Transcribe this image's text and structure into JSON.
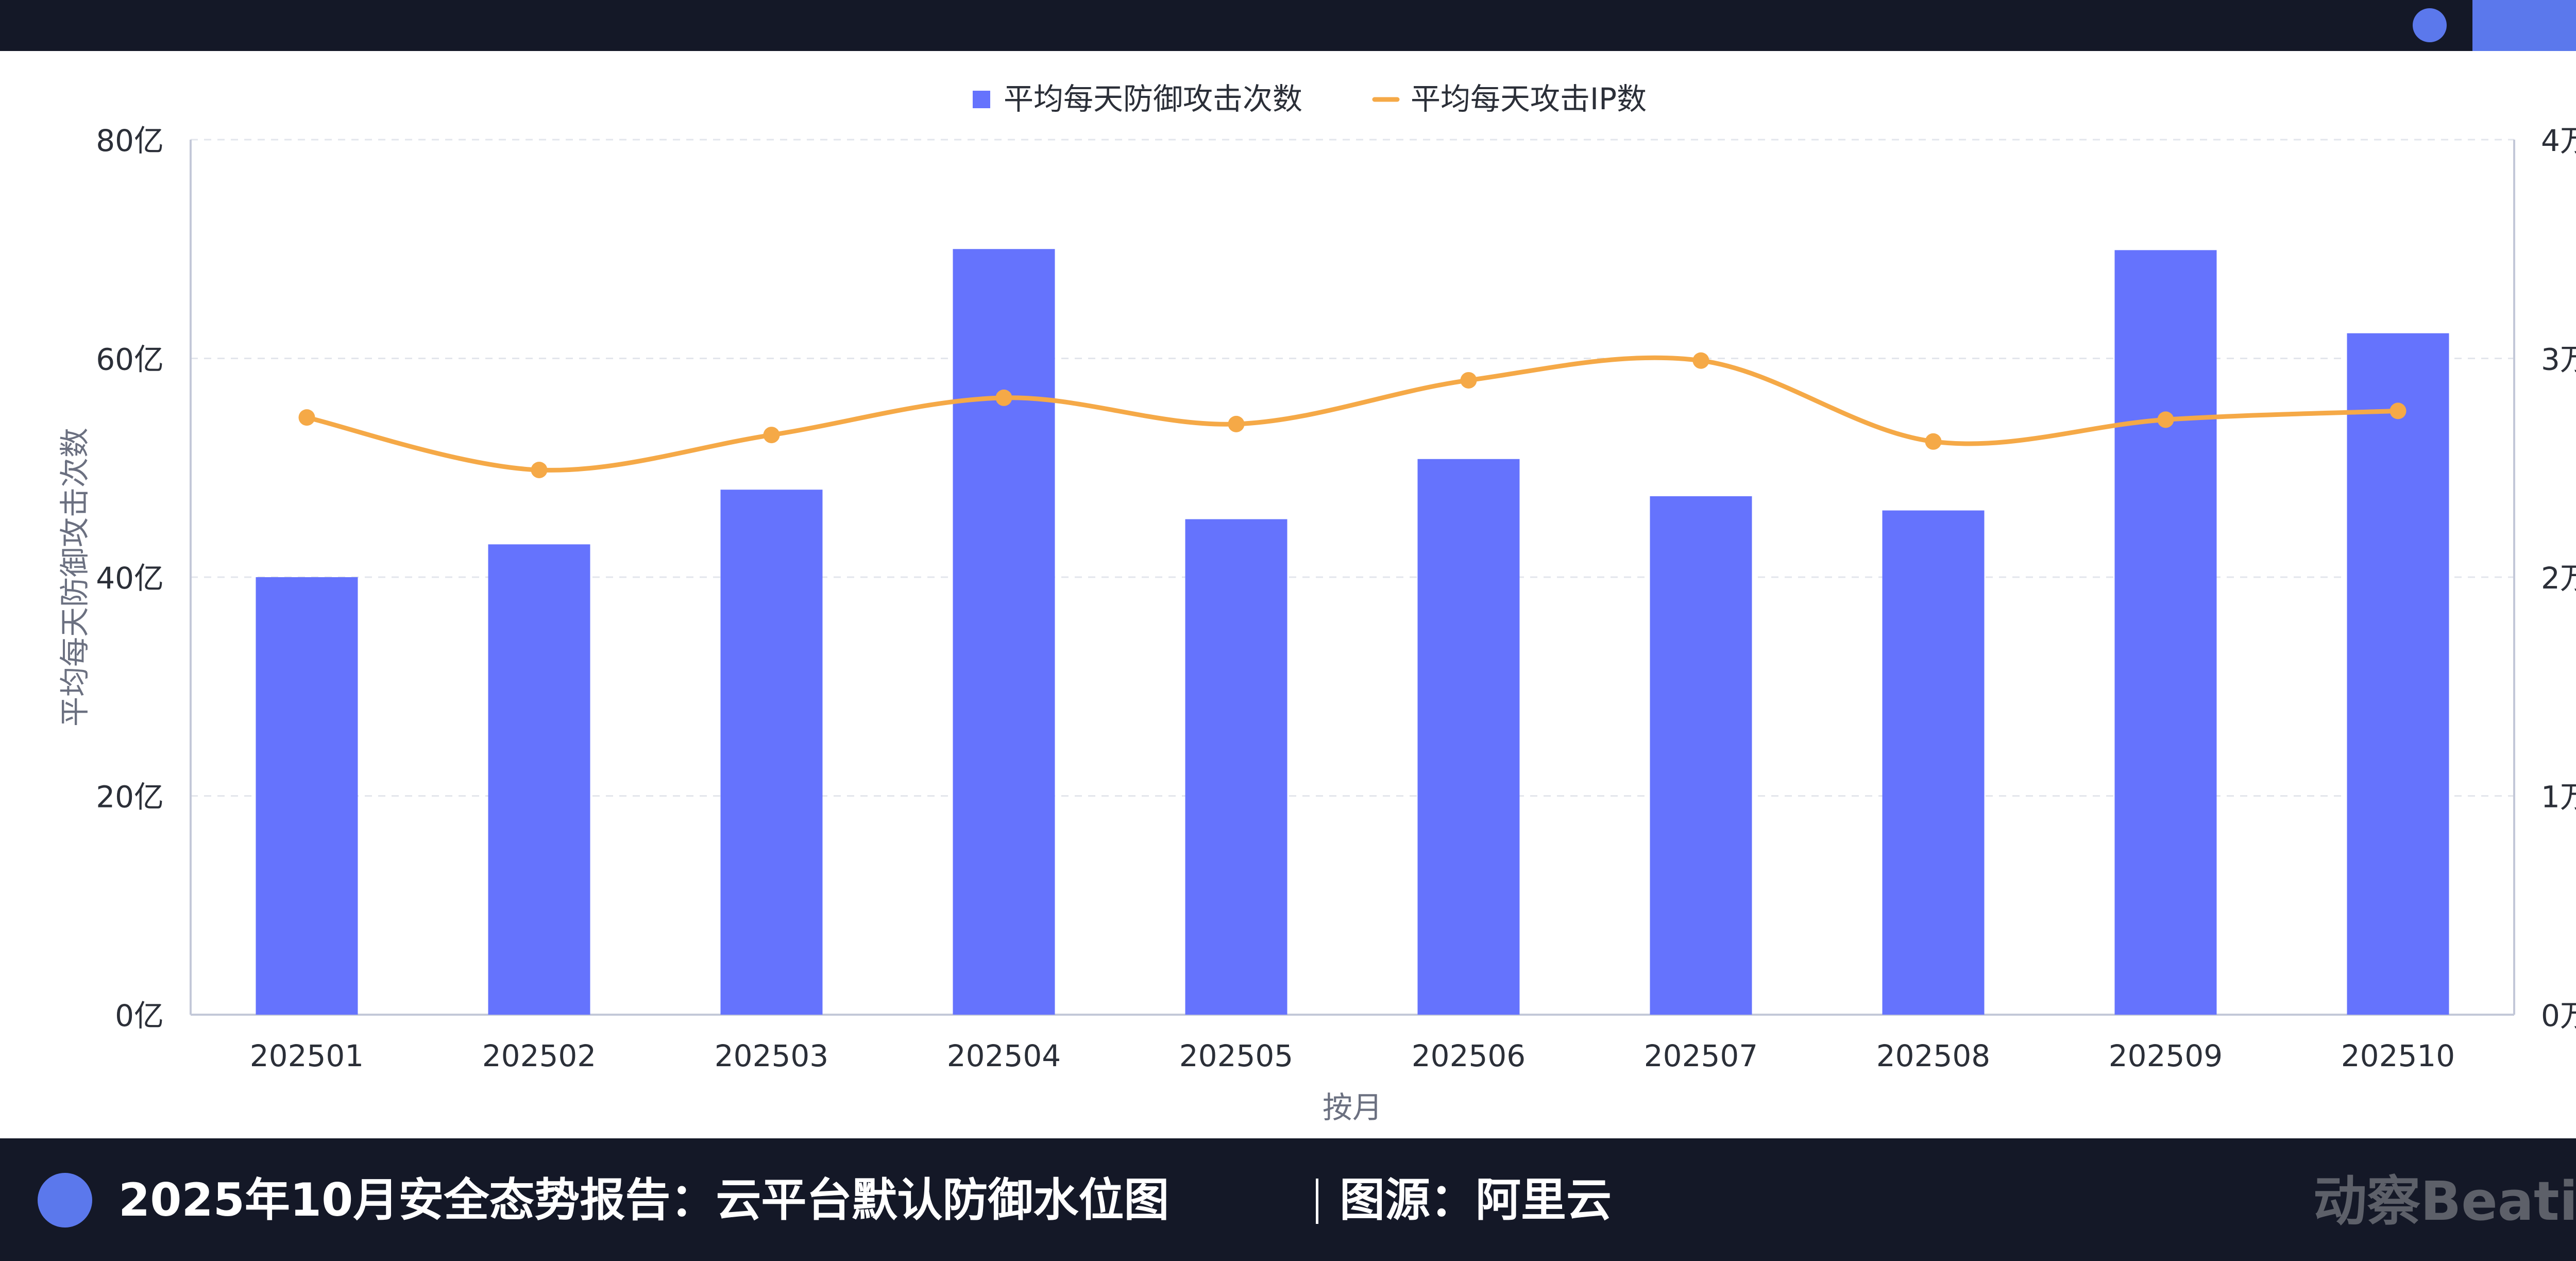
{
  "caption": {
    "title": "2025年10月安全态势报告：云平台默认防御水位图",
    "source": "图源：阿里云",
    "logo": "动察Beating"
  },
  "colors": {
    "bar": "#6573fd",
    "line": "#f5a947",
    "frame": "#141827",
    "accent": "#5b78ec"
  },
  "chart_data": {
    "type": "bar",
    "categories": [
      "202501",
      "202502",
      "202503",
      "202504",
      "202505",
      "202506",
      "202507",
      "202508",
      "202509",
      "202510"
    ],
    "series": [
      {
        "name": "平均每天防御攻击次数",
        "type": "bar",
        "axis": "left",
        "values": [
          40,
          43,
          48,
          70,
          45.3,
          50.8,
          47.4,
          46.1,
          69.9,
          62.3
        ]
      },
      {
        "name": "平均每天攻击IP数",
        "type": "line",
        "axis": "right",
        "values": [
          27300,
          24900,
          26500,
          28200,
          27000,
          29000,
          29900,
          26200,
          27200,
          27600
        ]
      }
    ],
    "xlabel": "按月",
    "ylabel": "平均每天防御攻击次数",
    "y2label": "平均每天攻击IP数",
    "ylim": [
      0,
      80
    ],
    "y2lim": [
      0,
      40000
    ],
    "yticks": [
      "0亿",
      "20亿",
      "40亿",
      "60亿",
      "80亿"
    ],
    "y2ticks": [
      "0万",
      "1万",
      "2万",
      "3万",
      "4万"
    ],
    "legend": "top-center",
    "grid": true
  }
}
